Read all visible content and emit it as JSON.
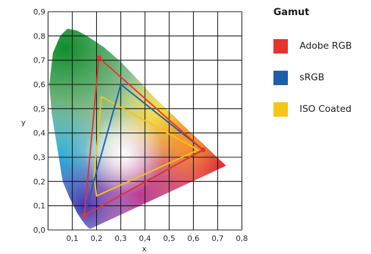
{
  "chart_data": {
    "type": "scatter",
    "title": "",
    "xlabel": "x",
    "ylabel": "y",
    "xlim": [
      0.0,
      0.8
    ],
    "ylim": [
      0.0,
      0.9
    ],
    "x_ticks": [
      "0,1",
      "0,2",
      "0,3",
      "0,4",
      "0,5",
      "0,6",
      "0,7",
      "0,8"
    ],
    "y_ticks": [
      "0,0",
      "0,1",
      "0,2",
      "0,3",
      "0,4",
      "0,5",
      "0,6",
      "0,7",
      "0,8",
      "0,9"
    ],
    "grid": true,
    "legend": {
      "title": "Gamut",
      "placement": "right"
    },
    "spectral_locus": [
      [
        0.175,
        0.005
      ],
      [
        0.172,
        0.005
      ],
      [
        0.166,
        0.009
      ],
      [
        0.155,
        0.02
      ],
      [
        0.14,
        0.04
      ],
      [
        0.12,
        0.07
      ],
      [
        0.09,
        0.13
      ],
      [
        0.06,
        0.2
      ],
      [
        0.045,
        0.295
      ],
      [
        0.015,
        0.48
      ],
      [
        0.005,
        0.6
      ],
      [
        0.02,
        0.73
      ],
      [
        0.05,
        0.8
      ],
      [
        0.08,
        0.83
      ],
      [
        0.12,
        0.822
      ],
      [
        0.16,
        0.8
      ],
      [
        0.23,
        0.754
      ],
      [
        0.3,
        0.693
      ],
      [
        0.37,
        0.62
      ],
      [
        0.44,
        0.545
      ],
      [
        0.51,
        0.478
      ],
      [
        0.58,
        0.41
      ],
      [
        0.64,
        0.355
      ],
      [
        0.69,
        0.307
      ],
      [
        0.735,
        0.265
      ]
    ],
    "series": [
      {
        "name": "Adobe RGB",
        "color": "#e8322f",
        "points": [
          [
            0.64,
            0.33
          ],
          [
            0.21,
            0.71
          ],
          [
            0.15,
            0.06
          ]
        ]
      },
      {
        "name": "sRGB",
        "color": "#1d5fa8",
        "points": [
          [
            0.64,
            0.33
          ],
          [
            0.3,
            0.6
          ],
          [
            0.15,
            0.06
          ]
        ]
      },
      {
        "name": "ISO Coated",
        "color": "#f5c518",
        "points": [
          [
            0.62,
            0.33
          ],
          [
            0.22,
            0.55
          ],
          [
            0.19,
            0.22
          ],
          [
            0.2,
            0.14
          ]
        ]
      }
    ]
  }
}
